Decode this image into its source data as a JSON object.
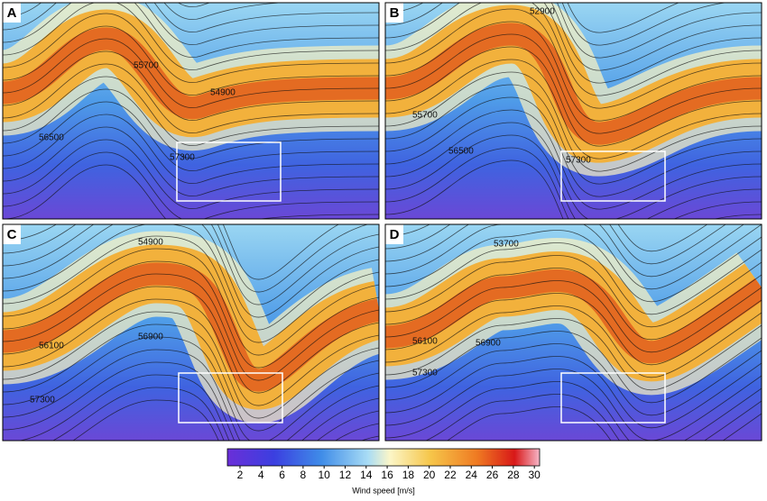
{
  "panels": [
    {
      "label": "A",
      "contour_labels": [
        "55700",
        "54900",
        "56500",
        "57300"
      ]
    },
    {
      "label": "B",
      "contour_labels": [
        "52900",
        "55700",
        "56500",
        "57300"
      ]
    },
    {
      "label": "C",
      "contour_labels": [
        "54900",
        "56100",
        "56900",
        "57300"
      ]
    },
    {
      "label": "D",
      "contour_labels": [
        "53700",
        "56100",
        "56900",
        "57300"
      ]
    }
  ],
  "colorbar": {
    "label": "Wind speed [m/s]",
    "lim": [
      0.8,
      30.5
    ],
    "ticks": [
      2,
      4,
      6,
      8,
      10,
      12,
      14,
      16,
      18,
      20,
      22,
      24,
      26,
      28,
      30
    ]
  }
}
